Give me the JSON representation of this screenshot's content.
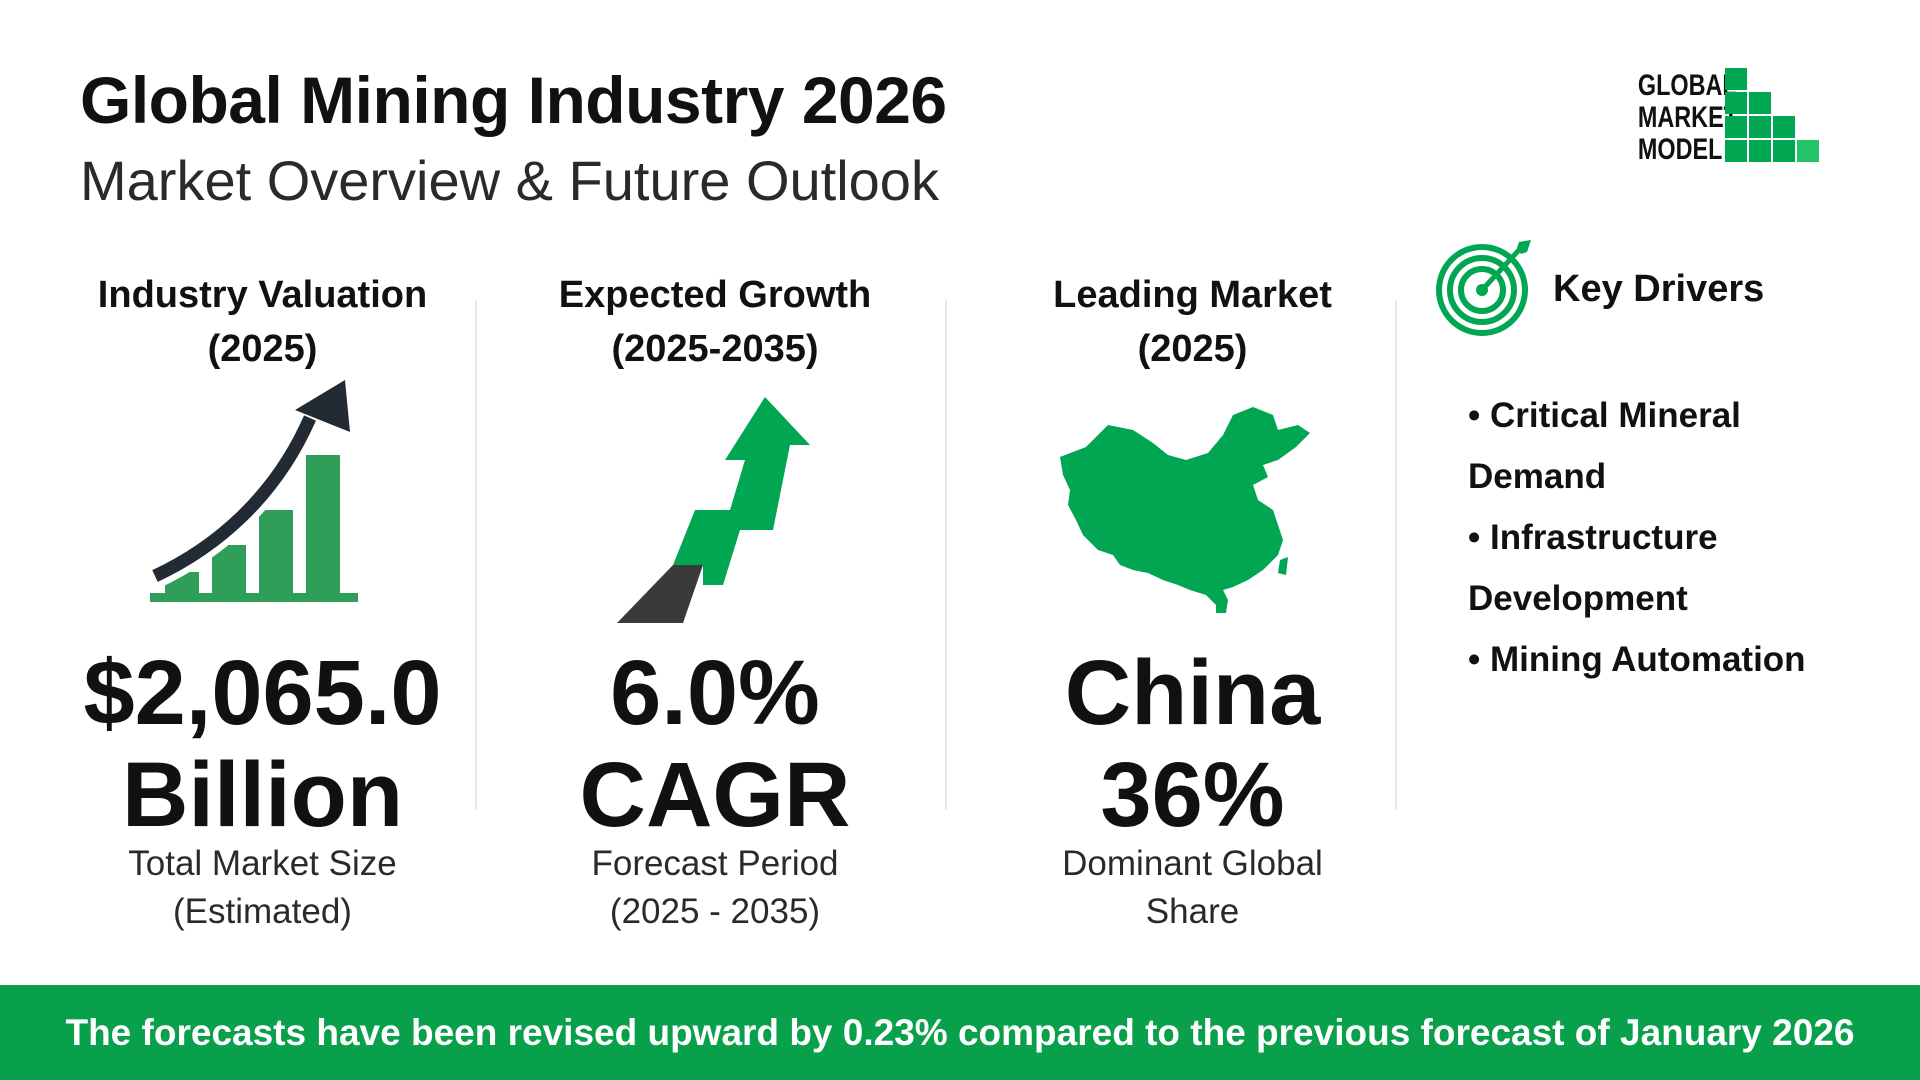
{
  "header": {
    "title": "Global Mining Industry 2026",
    "subtitle": "Market Overview & Future Outlook"
  },
  "logo": {
    "line1": "GLOBAL",
    "line2": "MARKET",
    "line3": "MODEL",
    "color": "#00a651"
  },
  "cards": [
    {
      "heading_line1": "Industry Valuation",
      "heading_line2": "(2025)",
      "value_line1": "$2,065.0",
      "value_line2": "Billion",
      "caption_line1": "Total Market Size",
      "caption_line2": "(Estimated)",
      "icon": "bar-chart-up-arrow-icon"
    },
    {
      "heading_line1": "Expected Growth",
      "heading_line2": "(2025-2035)",
      "value_line1": "6.0%",
      "value_line2": "CAGR",
      "caption_line1": "Forecast Period",
      "caption_line2": "(2025 - 2035)",
      "icon": "growth-arrow-icon"
    },
    {
      "heading_line1": "Leading Market",
      "heading_line2": "(2025)",
      "value_line1": "China",
      "value_line2": "36%",
      "caption_line1": "Dominant Global",
      "caption_line2": "Share",
      "icon": "china-map-icon"
    }
  ],
  "drivers": {
    "heading": "Key Drivers",
    "icon": "target-icon",
    "items": [
      "• Critical Mineral",
      "Demand",
      "• Infrastructure",
      "Development",
      "• Mining Automation"
    ]
  },
  "footer": {
    "text": "The forecasts have been revised upward by 0.23% compared to the previous forecast of January 2026"
  },
  "colors": {
    "accent": "#00a651",
    "footer_bg": "#09a04c",
    "dark": "#222222"
  }
}
